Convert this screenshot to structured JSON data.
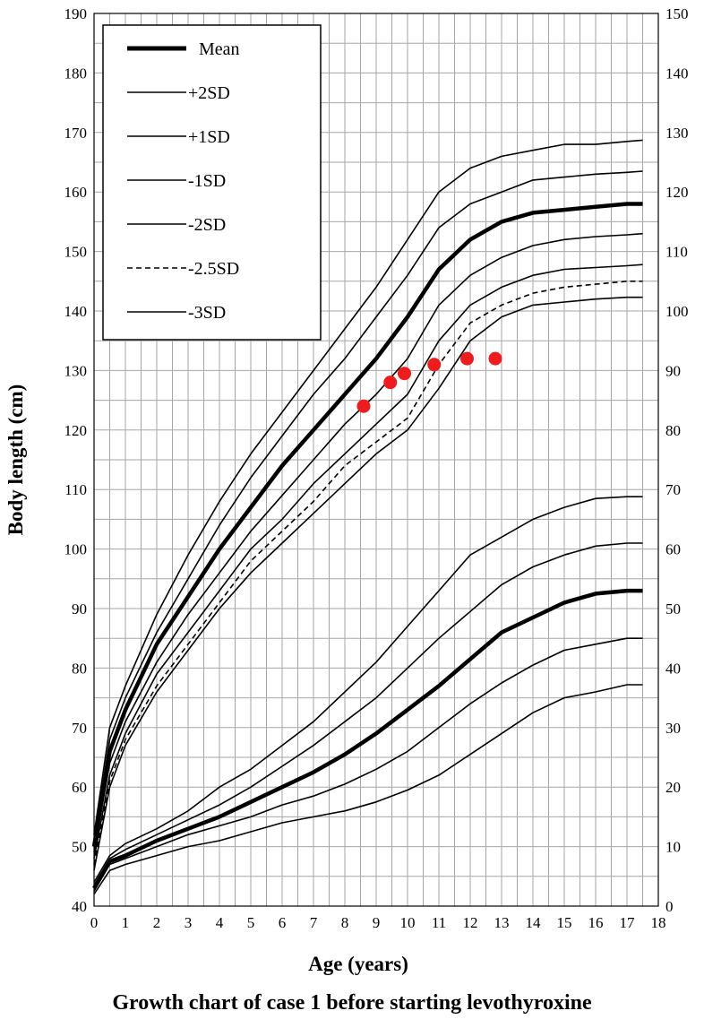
{
  "caption": "Growth chart of case 1 before starting levothyroxine",
  "chart_data": {
    "type": "line",
    "xlabel": "Age (years)",
    "ylabel": "Body length (cm)",
    "xlim": [
      0,
      18
    ],
    "ylim": [
      40,
      190
    ],
    "y2lim": [
      0,
      150
    ],
    "x_ticks": [
      "0",
      "1",
      "2",
      "3",
      "4",
      "5",
      "6",
      "7",
      "8",
      "9",
      "10",
      "11",
      "12",
      "13",
      "14",
      "15",
      "16",
      "17",
      "18"
    ],
    "y_ticks": [
      "40",
      "50",
      "60",
      "70",
      "80",
      "90",
      "100",
      "110",
      "120",
      "130",
      "140",
      "150",
      "160",
      "170",
      "180",
      "190"
    ],
    "y2_ticks": [
      "0",
      "10",
      "20",
      "30",
      "40",
      "50",
      "60",
      "70",
      "80",
      "90",
      "100",
      "110",
      "120",
      "130",
      "140",
      "150"
    ],
    "grid": true,
    "legend_position": "top-left",
    "legend": [
      {
        "label": "Mean",
        "style": "bold"
      },
      {
        "label": "+2SD",
        "style": "solid"
      },
      {
        "label": "+1SD",
        "style": "solid"
      },
      {
        "label": "-1SD",
        "style": "solid"
      },
      {
        "label": "-2SD",
        "style": "solid"
      },
      {
        "label": "-2.5SD",
        "style": "dashed"
      },
      {
        "label": "-3SD",
        "style": "solid"
      }
    ],
    "x": [
      0,
      0.5,
      1,
      2,
      3,
      4,
      5,
      6,
      7,
      8,
      9,
      10,
      11,
      12,
      13,
      14,
      15,
      16,
      17,
      17.5
    ],
    "series": [
      {
        "style": "solid",
        "values": [
          52,
          70,
          77,
          89,
          99,
          108,
          116,
          123,
          130,
          137,
          144,
          152,
          160,
          164,
          166,
          167,
          168,
          168,
          168.5,
          168.7
        ]
      },
      {
        "style": "solid",
        "values": [
          51,
          68,
          75,
          86,
          95,
          104,
          112,
          119,
          126,
          132,
          139,
          146,
          154,
          158,
          160,
          162,
          162.5,
          163,
          163.3,
          163.5
        ]
      },
      {
        "style": "bold",
        "values": [
          50,
          66,
          73,
          84,
          92,
          100,
          107,
          114,
          120,
          126,
          132,
          139,
          147,
          152,
          155,
          156.5,
          157,
          157.5,
          158,
          158
        ]
      },
      {
        "style": "solid",
        "values": [
          49,
          64,
          71,
          81,
          89,
          96,
          103,
          109,
          115,
          121,
          126,
          132,
          141,
          146,
          149,
          151,
          152,
          152.5,
          152.8,
          153
        ]
      },
      {
        "style": "solid",
        "values": [
          48,
          62,
          69,
          79,
          86,
          93,
          100,
          105,
          111,
          116,
          121,
          126,
          135,
          141,
          144,
          146,
          147,
          147.3,
          147.6,
          147.8
        ]
      },
      {
        "style": "dashed",
        "values": [
          47,
          61,
          68,
          77,
          84,
          91,
          98,
          103,
          108,
          114,
          118,
          122,
          131,
          138,
          141,
          143,
          144,
          144.5,
          145,
          145
        ]
      },
      {
        "style": "solid",
        "values": [
          46,
          60,
          67,
          76,
          83,
          90,
          96,
          101,
          106,
          111,
          116,
          120,
          127,
          135,
          139,
          141,
          141.5,
          142,
          142.3,
          142.3
        ]
      },
      {
        "style": "solid",
        "values": [
          44,
          48.5,
          50.5,
          53,
          56,
          60,
          63,
          67,
          71,
          76,
          81,
          87,
          93,
          99,
          102,
          105,
          107,
          108.5,
          108.8,
          108.8
        ]
      },
      {
        "style": "solid",
        "values": [
          43.5,
          48,
          49.5,
          52,
          54.5,
          57,
          60,
          63.5,
          67,
          71,
          75,
          80,
          85,
          89.5,
          94,
          97,
          99,
          100.5,
          101,
          101
        ]
      },
      {
        "style": "bold",
        "values": [
          43,
          47.5,
          48.5,
          51,
          53,
          55,
          57.5,
          60,
          62.5,
          65.5,
          69,
          73,
          77,
          81.5,
          86,
          88.5,
          91,
          92.5,
          93,
          93
        ]
      },
      {
        "style": "solid",
        "values": [
          42.5,
          47,
          48,
          50,
          52,
          53.5,
          55,
          57,
          58.5,
          60.5,
          63,
          66,
          70,
          74,
          77.5,
          80.5,
          83,
          84,
          85,
          85
        ]
      },
      {
        "style": "solid",
        "values": [
          42,
          46,
          47,
          48.5,
          50,
          51,
          52.5,
          54,
          55,
          56,
          57.5,
          59.5,
          62,
          65.5,
          69,
          72.5,
          75,
          76,
          77.2,
          77.2
        ]
      }
    ],
    "points": [
      {
        "x": 8.6,
        "y": 124
      },
      {
        "x": 9.45,
        "y": 128
      },
      {
        "x": 9.9,
        "y": 129.5
      },
      {
        "x": 10.85,
        "y": 131
      },
      {
        "x": 11.9,
        "y": 132
      },
      {
        "x": 12.8,
        "y": 132
      }
    ],
    "colors": {
      "line": "#000000",
      "grid": "#a6a6a6",
      "points": "#ee1c1c"
    }
  }
}
